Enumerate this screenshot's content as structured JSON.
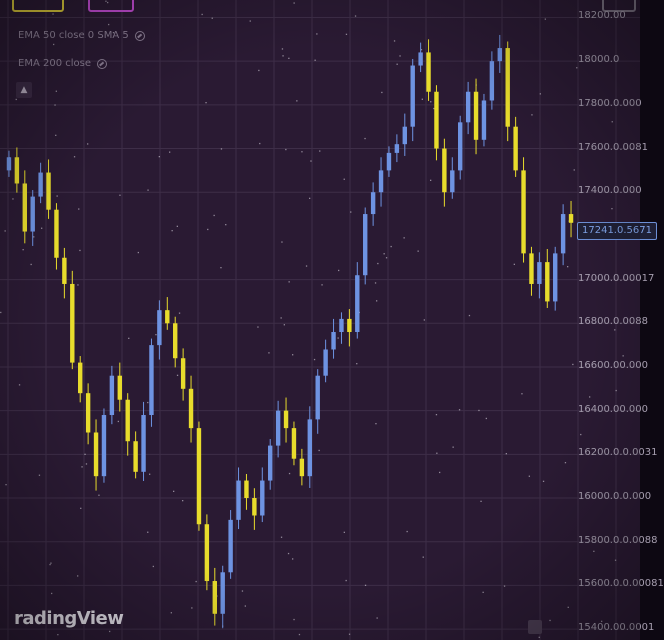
{
  "legend": {
    "ema50": "EMA 50 close 0 SMA 5",
    "ema200": "EMA 200 close"
  },
  "price_axis": {
    "labels": [
      "18200.00",
      "18000.0",
      "17800.0.000",
      "17600.0.0081",
      "17400.0.000",
      "17000.0.00017",
      "16800.0.0088",
      "16600.00.000",
      "16400.00.000",
      "16200.0.0.0031",
      "16000.0.0.000",
      "15800.0.0.0088",
      "15600.0.0.00081",
      "15400.00.0001"
    ],
    "values": [
      18200,
      18000,
      17800,
      17600,
      17400,
      17000,
      16800,
      16600,
      16400,
      16200,
      16000,
      15800,
      15600,
      15400
    ],
    "current_price": "17241.0.5671"
  },
  "branding": {
    "watermark": "radingView"
  },
  "colors": {
    "background": "#2a1a33",
    "grid": "#3e2e48",
    "candle_up": "#6e93e2",
    "candle_down": "#e8dc2c"
  },
  "chart_data": {
    "type": "candlestick",
    "ylim": [
      15350,
      18280
    ],
    "closes": [
      17560,
      17440,
      17220,
      17380,
      17490,
      17320,
      17100,
      16980,
      16620,
      16480,
      16300,
      16100,
      16380,
      16560,
      16450,
      16260,
      16120,
      16380,
      16700,
      16860,
      16800,
      16640,
      16500,
      16320,
      15880,
      15620,
      15470,
      15660,
      15900,
      16080,
      16000,
      15920,
      16080,
      16240,
      16400,
      16320,
      16180,
      16100,
      16360,
      16560,
      16680,
      16760,
      16820,
      16760,
      17020,
      17300,
      17400,
      17500,
      17580,
      17620,
      17700,
      17980,
      18040,
      17860,
      17600,
      17400,
      17500,
      17720,
      17860,
      17640,
      17820,
      18000,
      18060,
      17700,
      17500,
      17120,
      16980,
      17080,
      16900,
      17120,
      17300,
      17260
    ]
  }
}
